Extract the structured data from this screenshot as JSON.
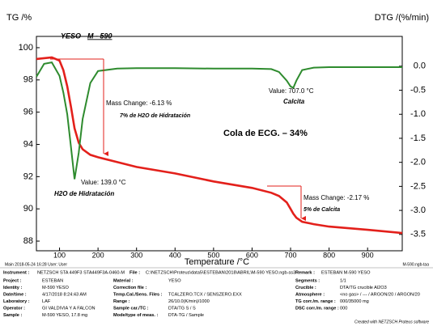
{
  "chart_data": {
    "type": "line",
    "y_label": "TG /%",
    "y2_label": "DTG /(%/min)",
    "x_label": "Temperature /°C",
    "title": "YESO",
    "subtitle": "M - 590",
    "x": [
      40,
      60,
      80,
      100,
      110,
      120,
      130,
      139,
      150,
      160,
      180,
      200,
      250,
      300,
      400,
      500,
      600,
      650,
      670,
      690,
      700,
      707,
      715,
      730,
      760,
      800,
      900,
      990
    ],
    "series": [
      {
        "name": "TG",
        "color": "#e3201b",
        "axis": "y",
        "values": [
          99.3,
          99.35,
          99.4,
          99.2,
          98.6,
          97.6,
          96.3,
          95.0,
          94.1,
          93.7,
          93.35,
          93.2,
          92.9,
          92.6,
          92.2,
          91.7,
          91.3,
          91.0,
          90.8,
          90.4,
          90.0,
          89.7,
          89.45,
          89.2,
          89.05,
          88.9,
          88.7,
          88.5
        ]
      },
      {
        "name": "DTG",
        "color": "#2e8b2e",
        "axis": "y2",
        "values": [
          -0.22,
          0.05,
          0.08,
          -0.2,
          -0.55,
          -1.0,
          -1.7,
          -2.35,
          -1.8,
          -1.1,
          -0.35,
          -0.1,
          -0.05,
          -0.04,
          -0.04,
          -0.05,
          -0.05,
          -0.06,
          -0.12,
          -0.3,
          -0.42,
          -0.45,
          -0.3,
          -0.08,
          -0.03,
          -0.02,
          -0.02,
          -0.02
        ]
      }
    ],
    "xlim": [
      40,
      990
    ],
    "ylim": [
      87.4,
      100.7
    ],
    "y2lim": [
      -3.84,
      0.62
    ],
    "xticks": [
      100,
      200,
      300,
      400,
      500,
      600,
      700,
      800,
      900
    ],
    "yticks": [
      88,
      90,
      92,
      94,
      96,
      98,
      100
    ],
    "y2ticks": [
      {
        "value": 0,
        "label": "0.0"
      },
      -0.5,
      {
        "value": -1,
        "label": "-1.0"
      },
      -1.5,
      {
        "value": -2,
        "label": "-2.0"
      },
      -2.5,
      {
        "value": -3,
        "label": "-3.0"
      },
      -3.5
    ],
    "annotations": [
      "Mass Change: -6.13 %",
      "7% de H2O de Hidratación",
      "Value: 139.0 °C",
      "H2O de Hidratación",
      "Value: 707.0 °C",
      "Calcita",
      "Cola de ECG. – 34%",
      "Mass Change: -2.17 %",
      "5% de Calcita"
    ]
  },
  "footer": {
    "left": "Main  2018-05-24 16:28   User: User",
    "right": "M-590.ngb-taa",
    "credit": "Created with NETZSCH Proteus software"
  },
  "info": {
    "header": [
      [
        "Instrument :",
        "NETZSCH STA 449F3 STA449F3A-0460-M"
      ],
      [
        "File :",
        "C:\\NETZSCH\\Proteus\\data5\\ESTEBAN\\2018\\ABRIL\\M-590 YESO.ngb-ss3"
      ],
      [
        "Remark :",
        "ESTEBAN M-590 YESO"
      ]
    ],
    "rows": [
      [
        [
          "Project :",
          "ESTEBAN"
        ],
        [
          "Material :",
          "YESO"
        ],
        [
          "Segments :",
          "1/1"
        ]
      ],
      [
        [
          "Identity :",
          "M-590 YESO"
        ],
        [
          "Correction file :"
        ],
        [
          "Crucible :",
          "DTA/TG crucible Al2O3"
        ]
      ],
      [
        [
          "Date/time :",
          "4/17/2018 8:24:43 AM"
        ],
        [
          "Temp.Cal./Sens. Files :",
          "TCALZERO.TCX / SENSZERO.EXX"
        ],
        [
          "Atmosphere :",
          "<no gas> / --- / ARGON/20 / ARGON/20"
        ]
      ],
      [
        [
          "Laboratory :",
          "LAF"
        ],
        [
          "Range :",
          "26/10.0(K/min)/1000"
        ],
        [
          "TG corr./m. range :",
          "000/35000 mg"
        ]
      ],
      [
        [
          "Operator :",
          "GI VALDIVIA Y A FALCON"
        ],
        [
          "Sample car./TC :",
          "DTA/TG S / S"
        ],
        [
          "DSC corr./m. range :",
          "000"
        ]
      ],
      [
        [
          "Sample :",
          "M-590 YESO, 17.8 mg"
        ],
        [
          "Mode/type of meas. :",
          "DTA-TG / Sample"
        ]
      ]
    ]
  }
}
